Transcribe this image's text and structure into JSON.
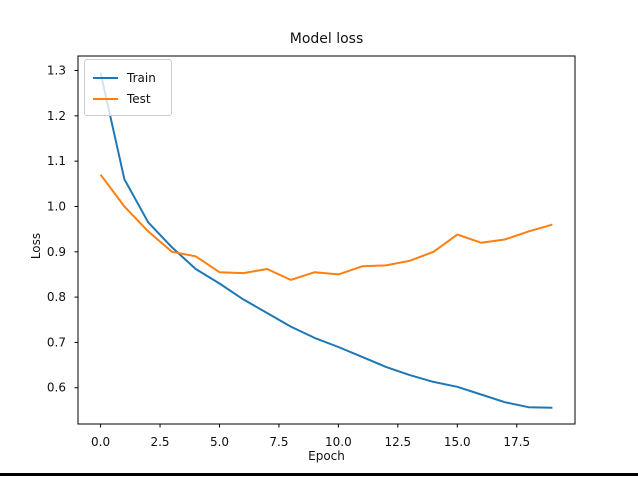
{
  "window": {
    "background": "#ffffff",
    "bottom_rule_color": "#000000"
  },
  "chart_data": {
    "type": "line",
    "title": "Model loss",
    "xlabel": "Epoch",
    "ylabel": "Loss",
    "x": [
      0,
      1,
      2,
      3,
      4,
      5,
      6,
      7,
      8,
      9,
      10,
      11,
      12,
      13,
      14,
      15,
      16,
      17,
      18,
      19
    ],
    "series": [
      {
        "name": "Train",
        "color": "#1f77b4",
        "values": [
          1.295,
          1.06,
          0.965,
          0.91,
          0.862,
          0.83,
          0.795,
          0.765,
          0.735,
          0.71,
          0.69,
          0.668,
          0.646,
          0.628,
          0.613,
          0.602,
          0.585,
          0.568,
          0.557,
          0.556
        ]
      },
      {
        "name": "Test",
        "color": "#ff7f0e",
        "values": [
          1.07,
          1.0,
          0.945,
          0.9,
          0.89,
          0.855,
          0.853,
          0.862,
          0.838,
          0.855,
          0.85,
          0.868,
          0.87,
          0.88,
          0.9,
          0.938,
          0.92,
          0.927,
          0.945,
          0.96
        ]
      }
    ],
    "xlim": [
      -0.95,
      19.95
    ],
    "ylim": [
      0.52,
      1.332
    ],
    "xticks": [
      0.0,
      2.5,
      5.0,
      7.5,
      10.0,
      12.5,
      15.0,
      17.5
    ],
    "yticks": [
      0.6,
      0.7,
      0.8,
      0.9,
      1.0,
      1.1,
      1.2,
      1.3
    ],
    "grid": false,
    "legend_position": "upper-left",
    "axis_color": "#000000",
    "text_color": "#111111"
  }
}
